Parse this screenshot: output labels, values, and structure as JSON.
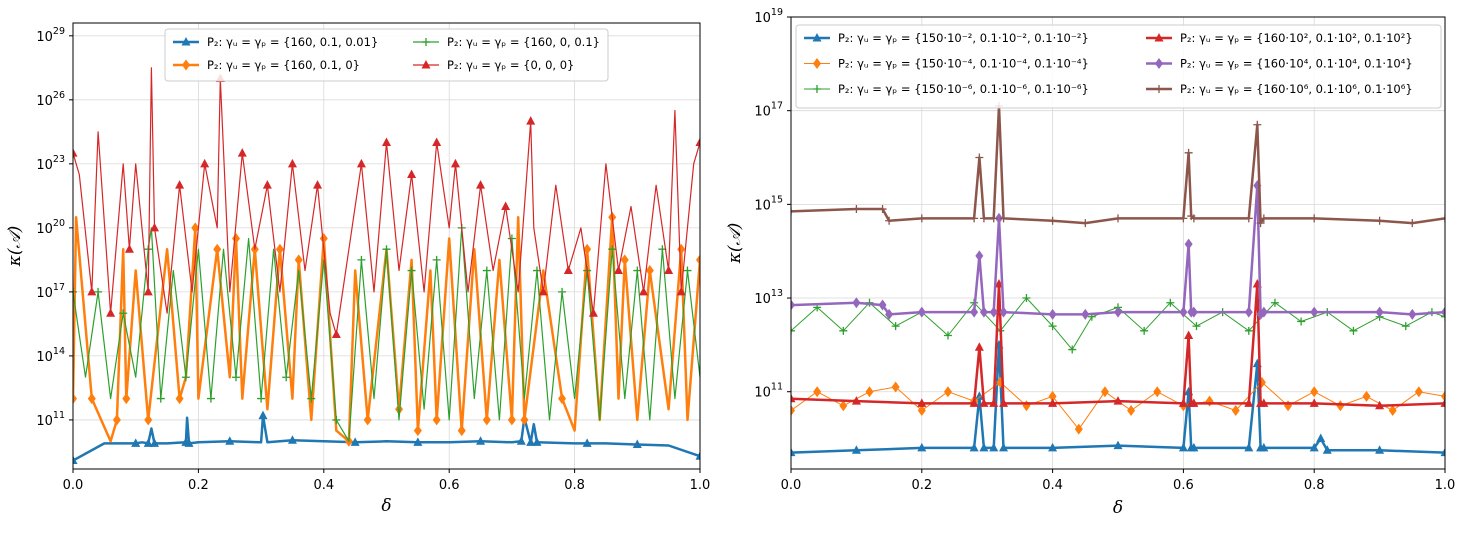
{
  "chart_data": [
    {
      "type": "line",
      "title": "",
      "xlabel": "δ",
      "ylabel": "κ(𝒜)",
      "xlim": [
        0,
        1
      ],
      "ylim_log10": [
        8.7,
        29.6
      ],
      "yscale": "log",
      "grid": true,
      "legend_position": "top-center",
      "legend_columns": 2,
      "xticks": [
        0,
        0.2,
        0.4,
        0.6,
        0.8,
        1.0
      ],
      "xtick_labels": [
        "0.0",
        "0.2",
        "0.4",
        "0.6",
        "0.8",
        "1.0"
      ],
      "yticks_log10": [
        11,
        14,
        17,
        20,
        23,
        26,
        29
      ],
      "ytick_labels": [
        "10",
        "10",
        "10",
        "10",
        "10",
        "10",
        "10"
      ],
      "ytick_exponents": [
        "11",
        "14",
        "17",
        "20",
        "23",
        "26",
        "29"
      ],
      "series": [
        {
          "name": "P₂: γᵤ = γₚ = {160, 0.1, 0.01}",
          "color": "#1f77b4",
          "marker": "triangle",
          "width": 2.5,
          "x": [
            0,
            0.05,
            0.1,
            0.11,
            0.12,
            0.125,
            0.13,
            0.15,
            0.18,
            0.182,
            0.185,
            0.2,
            0.25,
            0.3,
            0.303,
            0.31,
            0.35,
            0.4,
            0.45,
            0.5,
            0.55,
            0.6,
            0.65,
            0.7,
            0.715,
            0.72,
            0.73,
            0.735,
            0.74,
            0.8,
            0.82,
            0.85,
            0.9,
            0.95,
            1.0
          ],
          "y_log10": [
            9.1,
            9.9,
            9.9,
            9.95,
            9.9,
            10.6,
            9.9,
            9.9,
            9.95,
            11.1,
            9.9,
            9.95,
            10.0,
            9.95,
            11.2,
            9.95,
            10.05,
            10.0,
            9.95,
            10.0,
            9.95,
            9.95,
            10.0,
            9.95,
            10.0,
            11.1,
            9.95,
            10.8,
            9.95,
            9.9,
            9.9,
            9.9,
            9.85,
            9.8,
            9.3
          ]
        },
        {
          "name": "P₂: γᵤ = γₚ = {160, 0.1, 0}",
          "color": "#ff7f0e",
          "marker": "diamond",
          "width": 2.5,
          "x": [
            0,
            0.005,
            0.03,
            0.06,
            0.07,
            0.08,
            0.085,
            0.1,
            0.12,
            0.15,
            0.17,
            0.18,
            0.195,
            0.2,
            0.23,
            0.25,
            0.26,
            0.27,
            0.29,
            0.31,
            0.33,
            0.35,
            0.36,
            0.38,
            0.4,
            0.42,
            0.44,
            0.45,
            0.47,
            0.5,
            0.52,
            0.54,
            0.55,
            0.57,
            0.58,
            0.6,
            0.62,
            0.64,
            0.66,
            0.68,
            0.7,
            0.71,
            0.72,
            0.75,
            0.78,
            0.8,
            0.82,
            0.84,
            0.86,
            0.87,
            0.88,
            0.9,
            0.92,
            0.95,
            0.97,
            0.98,
            1.0
          ],
          "y_log10": [
            12,
            20.5,
            12,
            10,
            11,
            19,
            12,
            18,
            11,
            19,
            12,
            13,
            20,
            12,
            19,
            13,
            19.5,
            12,
            19,
            11.5,
            19,
            12,
            18.5,
            11,
            19.5,
            10.5,
            10,
            18,
            11,
            19,
            11.5,
            18.5,
            10.5,
            18,
            11,
            19.5,
            10.5,
            19,
            11,
            18.5,
            11,
            20.5,
            11,
            18,
            12,
            10.5,
            19,
            11,
            20.5,
            12,
            18.5,
            11,
            18,
            11.5,
            19,
            11,
            18.5
          ]
        },
        {
          "name": "P₂: γᵤ = γₚ = {160, 0, 0.1}",
          "color": "#2ca02c",
          "marker": "plus",
          "width": 1.2,
          "x": [
            0,
            0.02,
            0.04,
            0.06,
            0.08,
            0.1,
            0.12,
            0.125,
            0.14,
            0.16,
            0.18,
            0.2,
            0.22,
            0.24,
            0.26,
            0.28,
            0.3,
            0.32,
            0.34,
            0.36,
            0.38,
            0.4,
            0.42,
            0.44,
            0.46,
            0.48,
            0.5,
            0.52,
            0.54,
            0.56,
            0.58,
            0.6,
            0.62,
            0.64,
            0.66,
            0.68,
            0.7,
            0.72,
            0.74,
            0.76,
            0.78,
            0.8,
            0.82,
            0.84,
            0.86,
            0.88,
            0.9,
            0.92,
            0.94,
            0.96,
            0.98,
            1.0
          ],
          "y_log10": [
            17,
            13,
            17,
            12,
            16,
            13,
            19,
            20,
            12,
            18,
            13,
            19,
            12,
            19,
            13,
            19.5,
            12,
            19,
            13,
            18,
            12,
            18.5,
            11,
            10,
            18.5,
            12,
            19,
            11,
            18,
            11.5,
            18.5,
            11,
            20,
            12,
            18,
            11,
            19.5,
            12,
            18,
            11,
            17,
            12,
            18,
            11,
            19,
            12,
            18,
            11,
            19,
            12,
            18,
            13
          ]
        },
        {
          "name": "P₂: γᵤ = γₚ = {0, 0, 0}",
          "color": "#d62728",
          "marker": "triangle",
          "width": 1.2,
          "x": [
            0,
            0.01,
            0.03,
            0.04,
            0.06,
            0.08,
            0.09,
            0.1,
            0.12,
            0.125,
            0.13,
            0.15,
            0.17,
            0.19,
            0.21,
            0.23,
            0.235,
            0.25,
            0.27,
            0.29,
            0.31,
            0.33,
            0.35,
            0.37,
            0.39,
            0.41,
            0.42,
            0.44,
            0.46,
            0.48,
            0.5,
            0.52,
            0.54,
            0.56,
            0.58,
            0.6,
            0.61,
            0.63,
            0.65,
            0.67,
            0.69,
            0.71,
            0.73,
            0.735,
            0.75,
            0.77,
            0.79,
            0.81,
            0.83,
            0.85,
            0.87,
            0.89,
            0.91,
            0.93,
            0.95,
            0.96,
            0.97,
            0.99,
            1.0
          ],
          "y_log10": [
            23.5,
            22.5,
            17,
            24.5,
            16,
            23,
            19,
            23,
            17,
            27.5,
            20,
            16,
            22,
            17,
            23,
            20,
            27,
            17,
            23.5,
            19,
            22,
            17,
            23,
            18,
            22,
            16,
            15,
            19,
            23,
            17,
            24,
            18,
            22.5,
            17,
            24,
            20,
            23,
            17,
            22,
            18,
            21,
            17,
            25,
            20,
            17,
            22,
            18,
            20,
            16,
            23,
            18,
            21,
            17,
            22,
            18,
            25.5,
            17,
            23,
            24
          ]
        }
      ]
    },
    {
      "type": "line",
      "title": "",
      "xlabel": "δ",
      "ylabel": "κ(𝒜)",
      "xlim": [
        0,
        1
      ],
      "ylim_log10": [
        9.35,
        19
      ],
      "yscale": "log",
      "grid": true,
      "legend_position": "top-center",
      "legend_columns": 2,
      "xticks": [
        0,
        0.2,
        0.4,
        0.6,
        0.8,
        1.0
      ],
      "xtick_labels": [
        "0.0",
        "0.2",
        "0.4",
        "0.6",
        "0.8",
        "1.0"
      ],
      "yticks_log10": [
        11,
        13,
        15,
        17,
        19
      ],
      "ytick_labels": [
        "10",
        "10",
        "10",
        "10",
        "10"
      ],
      "ytick_exponents": [
        "11",
        "13",
        "15",
        "17",
        "19"
      ],
      "series": [
        {
          "name": "P₂: γᵤ = γₚ = {150·10⁻², 0.1·10⁻², 0.1·10⁻²}",
          "color": "#1f77b4",
          "marker": "triangle",
          "width": 2.5,
          "x": [
            0,
            0.1,
            0.2,
            0.28,
            0.288,
            0.295,
            0.31,
            0.318,
            0.325,
            0.4,
            0.5,
            0.6,
            0.608,
            0.612,
            0.616,
            0.7,
            0.713,
            0.718,
            0.723,
            0.8,
            0.81,
            0.82,
            0.9,
            1.0
          ],
          "y_log10": [
            9.7,
            9.75,
            9.8,
            9.8,
            10.9,
            9.8,
            9.8,
            12.0,
            9.8,
            9.8,
            9.85,
            9.8,
            11.0,
            9.8,
            9.8,
            9.8,
            11.6,
            9.8,
            9.8,
            9.8,
            10.0,
            9.75,
            9.75,
            9.7
          ]
        },
        {
          "name": "P₂: γᵤ = γₚ = {150·10⁻⁴, 0.1·10⁻⁴, 0.1·10⁻⁴}",
          "color": "#ff7f0e",
          "marker": "diamond",
          "width": 1.0,
          "x": [
            0,
            0.04,
            0.08,
            0.12,
            0.16,
            0.2,
            0.24,
            0.28,
            0.32,
            0.36,
            0.4,
            0.44,
            0.48,
            0.52,
            0.56,
            0.6,
            0.64,
            0.68,
            0.72,
            0.76,
            0.8,
            0.84,
            0.88,
            0.92,
            0.96,
            1.0
          ],
          "y_log10": [
            10.6,
            11.0,
            10.7,
            11.0,
            11.1,
            10.6,
            11.0,
            10.8,
            11.2,
            10.7,
            10.9,
            10.2,
            11.0,
            10.6,
            11.0,
            10.7,
            10.8,
            10.6,
            11.2,
            10.7,
            11.0,
            10.7,
            10.9,
            10.6,
            11.0,
            10.9
          ]
        },
        {
          "name": "P₂: γᵤ = γₚ = {150·10⁻⁶, 0.1·10⁻⁶, 0.1·10⁻⁶}",
          "color": "#2ca02c",
          "marker": "plus",
          "width": 1.0,
          "x": [
            0,
            0.04,
            0.08,
            0.12,
            0.16,
            0.2,
            0.24,
            0.28,
            0.32,
            0.36,
            0.4,
            0.43,
            0.46,
            0.5,
            0.54,
            0.58,
            0.62,
            0.66,
            0.7,
            0.74,
            0.78,
            0.82,
            0.86,
            0.9,
            0.94,
            0.98,
            1.0
          ],
          "y_log10": [
            12.3,
            12.8,
            12.3,
            12.9,
            12.4,
            12.7,
            12.2,
            12.9,
            12.3,
            13.0,
            12.4,
            11.9,
            12.6,
            12.8,
            12.3,
            12.9,
            12.4,
            12.7,
            12.3,
            12.9,
            12.5,
            12.7,
            12.3,
            12.6,
            12.4,
            12.7,
            12.6
          ]
        },
        {
          "name": "P₂: γᵤ = γₚ = {160·10², 0.1·10², 0.1·10²}",
          "color": "#d62728",
          "marker": "triangle",
          "width": 2.5,
          "x": [
            0,
            0.1,
            0.2,
            0.28,
            0.288,
            0.295,
            0.31,
            0.318,
            0.325,
            0.4,
            0.5,
            0.6,
            0.608,
            0.612,
            0.616,
            0.7,
            0.713,
            0.718,
            0.723,
            0.8,
            0.9,
            1.0
          ],
          "y_log10": [
            10.85,
            10.8,
            10.75,
            10.75,
            11.95,
            10.75,
            10.75,
            13.3,
            10.75,
            10.75,
            10.8,
            10.75,
            12.2,
            10.75,
            10.75,
            10.75,
            13.3,
            10.75,
            10.75,
            10.75,
            10.7,
            10.75
          ]
        },
        {
          "name": "P₂: γᵤ = γₚ = {160·10⁴, 0.1·10⁴, 0.1·10⁴}",
          "color": "#9467bd",
          "marker": "diamond",
          "width": 2.5,
          "x": [
            0,
            0.1,
            0.14,
            0.15,
            0.2,
            0.28,
            0.288,
            0.295,
            0.31,
            0.318,
            0.325,
            0.4,
            0.45,
            0.5,
            0.6,
            0.608,
            0.612,
            0.616,
            0.7,
            0.713,
            0.718,
            0.723,
            0.8,
            0.9,
            0.95,
            1.0
          ],
          "y_log10": [
            12.85,
            12.9,
            12.85,
            12.65,
            12.7,
            12.7,
            13.9,
            12.7,
            12.7,
            14.7,
            12.7,
            12.65,
            12.65,
            12.7,
            12.7,
            14.15,
            12.7,
            12.7,
            12.7,
            15.4,
            12.65,
            12.7,
            12.7,
            12.7,
            12.65,
            12.7
          ]
        },
        {
          "name": "P₂: γᵤ = γₚ = {160·10⁶, 0.1·10⁶, 0.1·10⁶}",
          "color": "#8c564b",
          "marker": "plus",
          "width": 2.5,
          "x": [
            0,
            0.1,
            0.14,
            0.15,
            0.2,
            0.28,
            0.288,
            0.295,
            0.31,
            0.318,
            0.325,
            0.4,
            0.45,
            0.5,
            0.6,
            0.608,
            0.612,
            0.616,
            0.7,
            0.713,
            0.718,
            0.723,
            0.8,
            0.9,
            0.95,
            1.0
          ],
          "y_log10": [
            14.85,
            14.9,
            14.9,
            14.65,
            14.7,
            14.7,
            16.0,
            14.7,
            14.7,
            17.1,
            14.7,
            14.65,
            14.6,
            14.7,
            14.7,
            16.1,
            14.75,
            14.7,
            14.7,
            16.7,
            14.6,
            14.7,
            14.7,
            14.65,
            14.6,
            14.7
          ]
        }
      ]
    }
  ]
}
